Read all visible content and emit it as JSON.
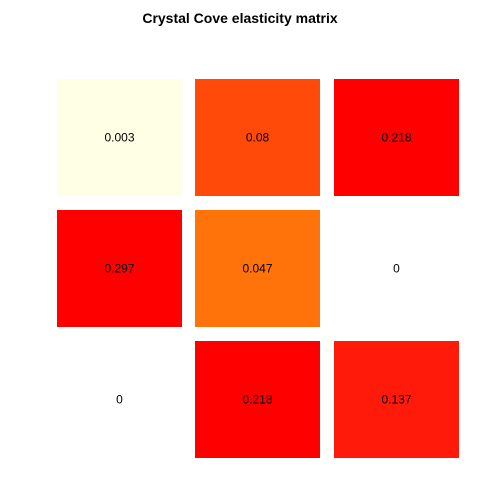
{
  "chart_data": {
    "type": "heatmap",
    "title": "Crystal Cove elasticity matrix",
    "rows": 3,
    "cols": 3,
    "values": [
      [
        0.003,
        0.08,
        0.218
      ],
      [
        0.297,
        0.047,
        0
      ],
      [
        0,
        0.218,
        0.137
      ]
    ],
    "labels": [
      [
        "0.003",
        "0.08",
        "0.218"
      ],
      [
        "0.297",
        "0.047",
        "0"
      ],
      [
        "0",
        "0.218",
        "0.137"
      ]
    ],
    "colors": [
      [
        "#FFFFE5",
        "#FF4A0A",
        "#FF0000"
      ],
      [
        "#FF0000",
        "#FF730A",
        "#FFFFFF"
      ],
      [
        "#FFFFFF",
        "#FF0000",
        "#FF1A0A"
      ]
    ],
    "grid": false,
    "legend": "none"
  }
}
